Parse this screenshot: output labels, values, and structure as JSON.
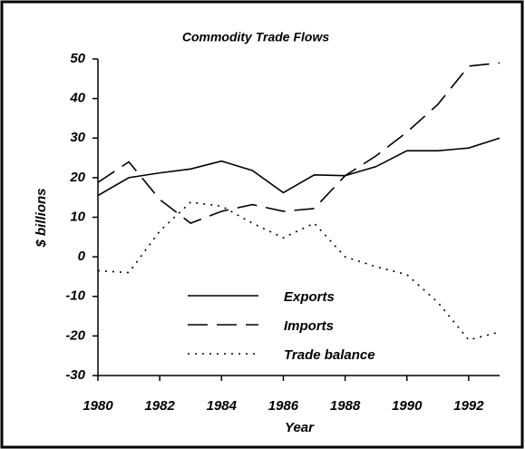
{
  "chart_data": {
    "type": "line",
    "title": "Commodity Trade Flows",
    "x_label": "Year",
    "y_label": "$ billions",
    "x": [
      1980,
      1981,
      1982,
      1983,
      1984,
      1985,
      1986,
      1987,
      1988,
      1989,
      1990,
      1991,
      1992,
      1993
    ],
    "series": [
      {
        "name": "Exports",
        "color": "#000000",
        "dash": "solid",
        "values": [
          15.5,
          20,
          21.2,
          22.2,
          24.2,
          21.8,
          16.2,
          20.7,
          20.5,
          22.8,
          26.8,
          26.8,
          27.5,
          30
        ]
      },
      {
        "name": "Imports",
        "color": "#000000",
        "dash": "dashed",
        "values": [
          18.8,
          24,
          14.5,
          8.5,
          11.5,
          13.2,
          11.5,
          12.2,
          20.5,
          25.5,
          31.5,
          38.5,
          48.2,
          49
        ]
      },
      {
        "name": "Trade balance",
        "color": "#000000",
        "dash": "dotted",
        "values": [
          -3.5,
          -4,
          6.5,
          13.8,
          12.8,
          8.5,
          4.8,
          8.5,
          0,
          -2.5,
          -4.5,
          -11.5,
          -21,
          -19
        ]
      }
    ],
    "xlim": [
      1980,
      1993
    ],
    "xticks": [
      1980,
      1982,
      1984,
      1986,
      1988,
      1990,
      1992
    ],
    "ylim": [
      -30,
      50
    ],
    "yticks": [
      -30,
      -20,
      -10,
      0,
      10,
      20,
      30,
      40,
      50
    ],
    "grid": false,
    "legend": "bottom-center"
  }
}
